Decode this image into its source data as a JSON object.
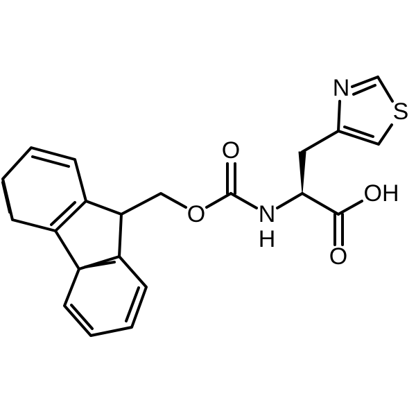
{
  "molecule": {
    "atom_labels": {
      "thiazole_n": "N",
      "thiazole_s": "S",
      "ether_o": "O",
      "carbamate_o": "O",
      "amide_n": "N",
      "amide_h": "H",
      "acid_oh": "OH",
      "acid_o": "O"
    }
  }
}
